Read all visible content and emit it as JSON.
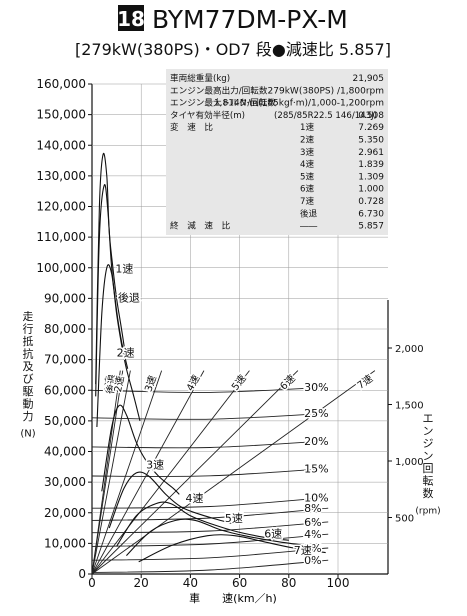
{
  "header": {
    "badge": "18",
    "model": "BYM77DM-PX-M",
    "subtitle": "[279kW(380PS)・OD7 段●減速比 5.857]"
  },
  "spec_table": {
    "rows": [
      {
        "label": "車両総重量(kg)",
        "col2": "",
        "value": "21,905"
      },
      {
        "label": "エンジン最高出力/回転数",
        "col2": "",
        "value": "279kW(380PS) /1,800rpm"
      },
      {
        "label": "エンジン最大トルク/回転数",
        "col2": "",
        "value": "1,814N·m(185kgf·m)/1,000-1,200rpm"
      },
      {
        "label": "タイヤ有効半径(m)",
        "col2": "(285/85R22.5 146/143J)",
        "value": "0.508"
      },
      {
        "label": "変　速　比",
        "col2": "1速",
        "value": "7.269"
      },
      {
        "label": "",
        "col2": "2速",
        "value": "5.350"
      },
      {
        "label": "",
        "col2": "3速",
        "value": "2.961"
      },
      {
        "label": "",
        "col2": "4速",
        "value": "1.839"
      },
      {
        "label": "",
        "col2": "5速",
        "value": "1.309"
      },
      {
        "label": "",
        "col2": "6速",
        "value": "1.000"
      },
      {
        "label": "",
        "col2": "7速",
        "value": "0.728"
      },
      {
        "label": "",
        "col2": "後退",
        "value": "6.730"
      },
      {
        "label": "終　減　速　比",
        "col2": "――",
        "value": "5.857"
      }
    ]
  },
  "chart_data": {
    "type": "line",
    "xlabel": "車　　速(km／h)",
    "ylabel": "走行抵抗及び駆動力 (N)",
    "y2label": "エンジン回転数 (rpm)",
    "xlim": [
      0,
      110
    ],
    "ylim": [
      0,
      160000
    ],
    "y2lim": [
      0,
      2500
    ],
    "x_ticks": [
      "0",
      "20",
      "40",
      "60",
      "80",
      "100"
    ],
    "y_ticks": [
      "0",
      "10,000",
      "20,000",
      "30,000",
      "40,000",
      "50,000",
      "60,000",
      "70,000",
      "80,000",
      "90,000",
      "100,000",
      "110,000",
      "120,000",
      "130,000",
      "140,000",
      "150,000",
      "160,000"
    ],
    "y2_ticks": [
      "500",
      "1,000",
      "1,500",
      "2,000"
    ],
    "drive_force_curves": [
      {
        "label": "1速",
        "points": [
          [
            1.5,
            62000
          ],
          [
            3,
            120000
          ],
          [
            4.5,
            137000
          ],
          [
            6,
            130000
          ],
          [
            7,
            112000
          ],
          [
            8.5,
            100000
          ],
          [
            10,
            90000
          ],
          [
            12,
            80000
          ],
          [
            13.5,
            72000
          ]
        ]
      },
      {
        "label": "後退",
        "points": [
          [
            1.5,
            58000
          ],
          [
            3,
            110000
          ],
          [
            5,
            127000
          ],
          [
            6.5,
            118000
          ],
          [
            8,
            100000
          ],
          [
            10,
            86000
          ],
          [
            12,
            76000
          ],
          [
            14.5,
            67000
          ]
        ]
      },
      {
        "label": "2速",
        "points": [
          [
            2,
            48000
          ],
          [
            4,
            85000
          ],
          [
            6,
            100000
          ],
          [
            8,
            98000
          ],
          [
            10,
            85000
          ],
          [
            12,
            75000
          ],
          [
            14,
            67000
          ],
          [
            17,
            58000
          ],
          [
            19.5,
            50000
          ]
        ]
      },
      {
        "label": "3速",
        "points": [
          [
            4,
            27000
          ],
          [
            8,
            48000
          ],
          [
            11,
            55000
          ],
          [
            14,
            52000
          ],
          [
            18,
            43000
          ],
          [
            22,
            37000
          ],
          [
            27,
            32000
          ],
          [
            33,
            28000
          ],
          [
            35.5,
            26000
          ]
        ]
      },
      {
        "label": "4速",
        "points": [
          [
            7,
            15000
          ],
          [
            13,
            28000
          ],
          [
            18,
            33000
          ],
          [
            23,
            32000
          ],
          [
            30,
            26000
          ],
          [
            36,
            22000
          ],
          [
            42,
            20000
          ],
          [
            50,
            18000
          ],
          [
            57,
            16500
          ]
        ]
      },
      {
        "label": "5速",
        "points": [
          [
            10,
            9000
          ],
          [
            18,
            19000
          ],
          [
            26,
            23000
          ],
          [
            32,
            23000
          ],
          [
            40,
            19000
          ],
          [
            48,
            16500
          ],
          [
            58,
            14000
          ],
          [
            70,
            12000
          ],
          [
            80,
            11000
          ]
        ]
      },
      {
        "label": "6速",
        "points": [
          [
            14,
            6000
          ],
          [
            24,
            14000
          ],
          [
            34,
            17500
          ],
          [
            42,
            17500
          ],
          [
            52,
            14500
          ],
          [
            62,
            12500
          ],
          [
            76,
            10500
          ],
          [
            90,
            9000
          ]
        ]
      },
      {
        "label": "7速",
        "points": [
          [
            19,
            4000
          ],
          [
            33,
            9500
          ],
          [
            47,
            12500
          ],
          [
            58,
            12500
          ],
          [
            70,
            10500
          ],
          [
            82,
            8500
          ],
          [
            95,
            7000
          ]
        ]
      }
    ],
    "grade_resistance_curves": [
      {
        "label": "30%",
        "points": [
          [
            0,
            60000
          ],
          [
            96,
            61000
          ]
        ]
      },
      {
        "label": "25%",
        "points": [
          [
            0,
            51000
          ],
          [
            96,
            52500
          ]
        ]
      },
      {
        "label": "20%",
        "points": [
          [
            0,
            41500
          ],
          [
            96,
            43500
          ]
        ]
      },
      {
        "label": "15%",
        "points": [
          [
            0,
            32000
          ],
          [
            96,
            34500
          ]
        ]
      },
      {
        "label": "10%",
        "points": [
          [
            0,
            21500
          ],
          [
            96,
            25000
          ]
        ]
      },
      {
        "label": "8%",
        "points": [
          [
            0,
            17500
          ],
          [
            96,
            21500
          ]
        ]
      },
      {
        "label": "6%",
        "points": [
          [
            0,
            13500
          ],
          [
            96,
            17000
          ]
        ]
      },
      {
        "label": "4%",
        "points": [
          [
            0,
            9000
          ],
          [
            96,
            13000
          ]
        ]
      },
      {
        "label": "2%",
        "points": [
          [
            0,
            4500
          ],
          [
            96,
            8500
          ]
        ]
      },
      {
        "label": "0%",
        "points": [
          [
            0,
            500
          ],
          [
            96,
            4500
          ]
        ]
      }
    ],
    "engine_speed_lines": [
      {
        "label": "1速",
        "points": [
          [
            0,
            0
          ],
          [
            11.5,
            1800
          ]
        ]
      },
      {
        "label": "後退",
        "points": [
          [
            0,
            0
          ],
          [
            12.5,
            1800
          ]
        ]
      },
      {
        "label": "2速",
        "points": [
          [
            0,
            0
          ],
          [
            15.6,
            1800
          ]
        ]
      },
      {
        "label": "3速",
        "points": [
          [
            0,
            0
          ],
          [
            28.3,
            1800
          ]
        ]
      },
      {
        "label": "4速",
        "points": [
          [
            0,
            0
          ],
          [
            45.5,
            1800
          ]
        ]
      },
      {
        "label": "5速",
        "points": [
          [
            0,
            0
          ],
          [
            64,
            1800
          ]
        ]
      },
      {
        "label": "6速",
        "points": [
          [
            0,
            0
          ],
          [
            83.7,
            1800
          ]
        ]
      },
      {
        "label": "7速",
        "points": [
          [
            0,
            0
          ],
          [
            115,
            1800
          ]
        ]
      }
    ]
  }
}
